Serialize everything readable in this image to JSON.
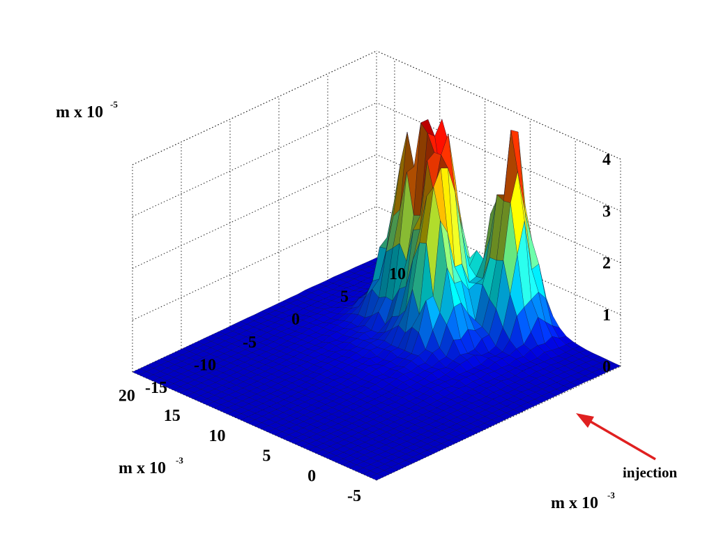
{
  "chart_data": {
    "type": "surface3d",
    "title": "",
    "x_axis": {
      "label": "m x 10",
      "exponent": "-3",
      "range": [
        -5,
        22
      ],
      "ticks": [
        -5,
        0,
        5,
        10,
        15,
        20
      ]
    },
    "y_axis": {
      "label": "m x 10",
      "exponent": "-3",
      "range": [
        -15,
        10
      ],
      "ticks": [
        -15,
        -10,
        -5,
        0,
        5,
        10
      ]
    },
    "z_axis": {
      "label": "m x 10",
      "exponent": "-5",
      "range": [
        0,
        4
      ],
      "ticks": [
        0,
        1,
        2,
        3,
        4
      ]
    },
    "grid": true,
    "colormap": "jet",
    "peaks": [
      {
        "x": 10,
        "y": 5,
        "z": 3.1
      },
      {
        "x": 8,
        "y": 3,
        "z": 2.1
      },
      {
        "x": 12,
        "y": 7,
        "z": 2.0
      },
      {
        "x": 5,
        "y": 8,
        "z": 3.3
      },
      {
        "x": 13,
        "y": 4,
        "z": 1.7
      }
    ],
    "annotations": [
      {
        "text": "injection",
        "points_to": {
          "x": 0,
          "y": 0,
          "z": 0
        },
        "color": "#e02020"
      }
    ]
  }
}
